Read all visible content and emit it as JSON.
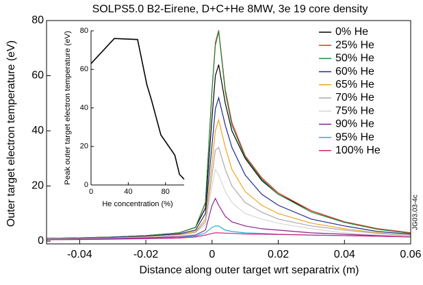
{
  "chart_data": [
    {
      "type": "line",
      "title": "SOLPS5.0 B2-Eirene, D+C+He 8MW, 3e 19 core density",
      "xlabel": "Distance along outer target wrt separatrix (m)",
      "ylabel": "Outer target electron temperature (eV)",
      "annotation": "JG03.03-4c",
      "xlim": [
        -0.05,
        0.06
      ],
      "ylim": [
        -1,
        80
      ],
      "xticks": [
        -0.04,
        -0.02,
        0,
        0.02,
        0.04,
        0.06
      ],
      "yticks": [
        0,
        20,
        40,
        60,
        80
      ],
      "legend": "upper right",
      "x": [
        -0.05,
        -0.04,
        -0.03,
        -0.02,
        -0.01,
        -0.005,
        -0.002,
        0,
        0.001,
        0.002,
        0.004,
        0.006,
        0.01,
        0.015,
        0.02,
        0.03,
        0.04,
        0.05,
        0.06
      ],
      "series": [
        {
          "name": "0% He",
          "color": "#000000",
          "values": [
            1,
            1.2,
            1.5,
            2,
            3,
            5,
            12,
            45,
            60,
            64,
            50,
            40,
            30,
            22,
            17,
            11,
            7,
            4.5,
            3
          ]
        },
        {
          "name": "25% He",
          "color": "#e8322c",
          "values": [
            1,
            1.2,
            1.5,
            2,
            3,
            5,
            14,
            55,
            72,
            76.5,
            55,
            43,
            31,
            23,
            17.5,
            11,
            7,
            4.5,
            3
          ]
        },
        {
          "name": "50% He",
          "color": "#1c8a3a",
          "values": [
            1,
            1.2,
            1.5,
            2,
            3,
            5,
            14,
            55,
            71,
            76,
            54,
            42,
            30.5,
            22.5,
            17,
            10.5,
            6.8,
            4.3,
            2.8
          ]
        },
        {
          "name": "60% He",
          "color": "#1e2a8c",
          "values": [
            0.9,
            1.1,
            1.4,
            1.8,
            2.6,
            4,
            10,
            35,
            48,
            52,
            42,
            34,
            24,
            17,
            13,
            8,
            5.5,
            3.5,
            2.5
          ]
        },
        {
          "name": "65% He",
          "color": "#f2a21a",
          "values": [
            0.8,
            1,
            1.2,
            1.6,
            2.3,
            3.5,
            8,
            28,
            40,
            44,
            34,
            26,
            18,
            13,
            10,
            6.5,
            4.5,
            3,
            2
          ]
        },
        {
          "name": "70% He",
          "color": "#a8a8a8",
          "values": [
            0.8,
            1,
            1.2,
            1.5,
            2.1,
            3.2,
            7,
            24,
            33,
            34,
            26,
            20,
            14,
            10.5,
            8,
            5.5,
            4,
            2.8,
            2
          ]
        },
        {
          "name": "75% He",
          "color": "#d6d6d6",
          "values": [
            0.7,
            0.9,
            1.1,
            1.4,
            2,
            3,
            6,
            20,
            26,
            24,
            18,
            14,
            10,
            8,
            6.5,
            4.5,
            3,
            2.2,
            1.8
          ]
        },
        {
          "name": "90% He",
          "color": "#8c1e8c",
          "values": [
            0.6,
            0.8,
            1,
            1.2,
            1.6,
            2.2,
            4,
            13,
            15.5,
            13,
            9,
            7,
            5.5,
            4.5,
            4,
            3,
            2.5,
            2,
            1.5
          ]
        },
        {
          "name": "95% He",
          "color": "#1ab0d8",
          "values": [
            0.5,
            0.6,
            0.8,
            1,
            1.3,
            1.8,
            3,
            5,
            5.5,
            5.5,
            4,
            3.5,
            3,
            2.8,
            2.5,
            2.2,
            2,
            1.8,
            1.5
          ]
        },
        {
          "name": "100% He",
          "color": "#d81e78",
          "values": [
            0.5,
            0.6,
            0.7,
            0.9,
            1.1,
            1.5,
            2.2,
            2.8,
            3,
            3,
            2.9,
            2.8,
            2.6,
            2.5,
            2.4,
            2.2,
            2,
            1.8,
            1.5
          ]
        }
      ]
    },
    {
      "type": "line",
      "xlabel": "He concentration (%)",
      "ylabel": "Peak outer target electron temperature (eV)",
      "xlim": [
        0,
        100
      ],
      "ylim": [
        0,
        80
      ],
      "xticks": [
        0,
        40,
        80
      ],
      "yticks": [
        0,
        20,
        40,
        60,
        80
      ],
      "x": [
        0,
        25,
        50,
        60,
        65,
        70,
        75,
        90,
        95,
        100
      ],
      "series": [
        {
          "color": "#000000",
          "values": [
            63,
            76,
            75.5,
            52,
            44,
            35,
            26,
            15.5,
            5.5,
            3
          ]
        }
      ]
    }
  ]
}
